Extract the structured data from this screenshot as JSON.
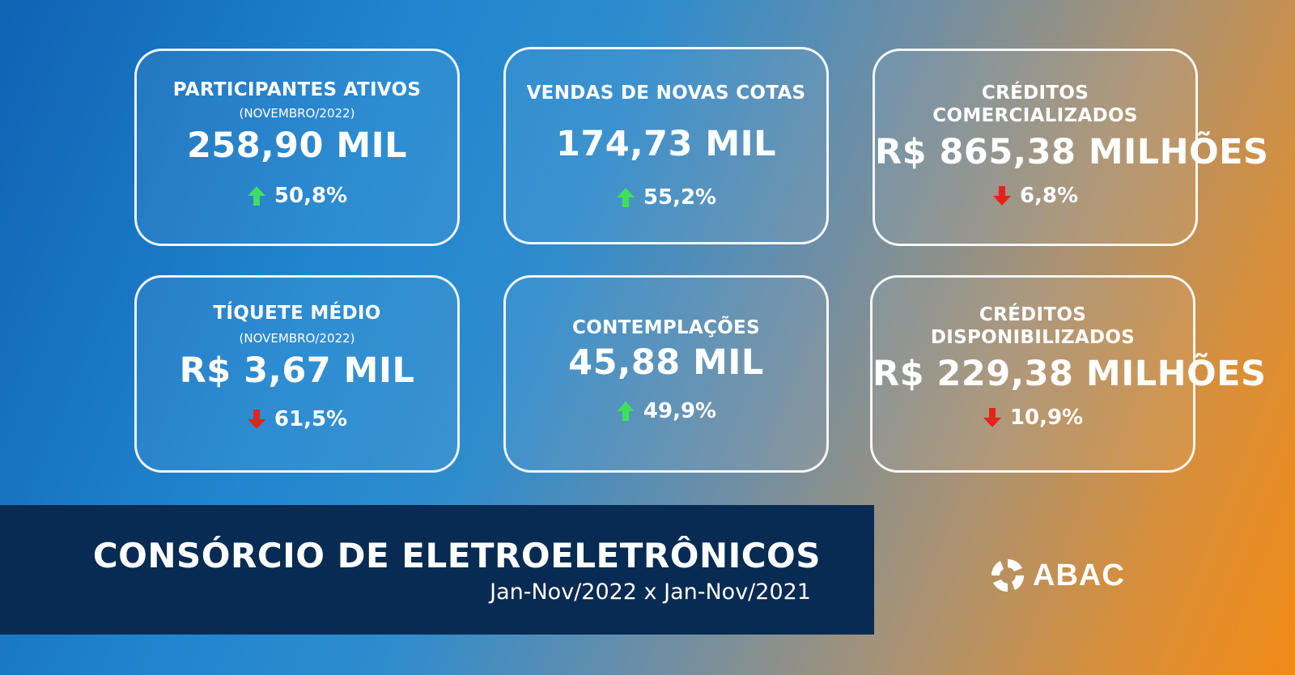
{
  "cards": [
    {
      "title": "PARTICIPANTES ATIVOS",
      "subtitle": "(NOVEMBRO/2022)",
      "value": "258,90 MIL",
      "change": "50,8%",
      "trend": "up"
    },
    {
      "title": "VENDAS DE NOVAS COTAS",
      "value": "174,73 MIL",
      "change": "55,2%",
      "trend": "up"
    },
    {
      "title_line1": "CRÉDITOS",
      "title_line2": "COMERCIALIZADOS",
      "value": "R$ 865,38 MILHÕES",
      "change": "6,8%",
      "trend": "down"
    },
    {
      "title": "TÍQUETE MÉDIO",
      "subtitle": "(NOVEMBRO/2022)",
      "value": "R$ 3,67 MIL",
      "change": "61,5%",
      "trend": "down"
    },
    {
      "title": "CONTEMPLAÇÕES",
      "value": "45,88 MIL",
      "change": "49,9%",
      "trend": "up"
    },
    {
      "title_line1": "CRÉDITOS",
      "title_line2": "DISPONIBILIZADOS",
      "value": "R$ 229,38 MILHÕES",
      "change": "10,9%",
      "trend": "down"
    }
  ],
  "banner": {
    "title": "CONSÓRCIO DE ELETROELETRÔNICOS",
    "subtitle": "Jan-Nov/2022 x Jan-Nov/2021"
  },
  "logo": {
    "text": "ABAC",
    "icon": "abac-logo-icon"
  },
  "colors": {
    "up": "#3ee05a",
    "down": "#e5231b",
    "banner": "#072b52",
    "gradient_start": "#0f63b4",
    "gradient_end": "#f28a16"
  }
}
